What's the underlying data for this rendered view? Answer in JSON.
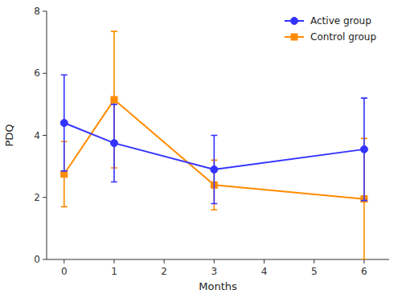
{
  "chart_data": {
    "type": "line",
    "x": [
      0,
      1,
      3,
      6
    ],
    "series": [
      {
        "name": "Active group",
        "color": "#3333FF",
        "marker": "circle",
        "values": [
          4.4,
          3.75,
          2.9,
          3.55
        ],
        "errors": [
          1.55,
          1.25,
          1.1,
          1.65
        ]
      },
      {
        "name": "Control group",
        "color": "#FF8C00",
        "marker": "square",
        "values": [
          2.75,
          5.15,
          2.4,
          1.95
        ],
        "errors": [
          1.05,
          2.2,
          0.8,
          1.95
        ]
      }
    ],
    "xlabel": "Months",
    "ylabel": "PDQ",
    "xlim": [
      -0.35,
      6.5
    ],
    "ylim": [
      0,
      8
    ],
    "xticks": [
      0,
      1,
      2,
      3,
      4,
      5,
      6
    ],
    "yticks": [
      0,
      2,
      4,
      6,
      8
    ],
    "grid": false,
    "legend": "upper right"
  }
}
